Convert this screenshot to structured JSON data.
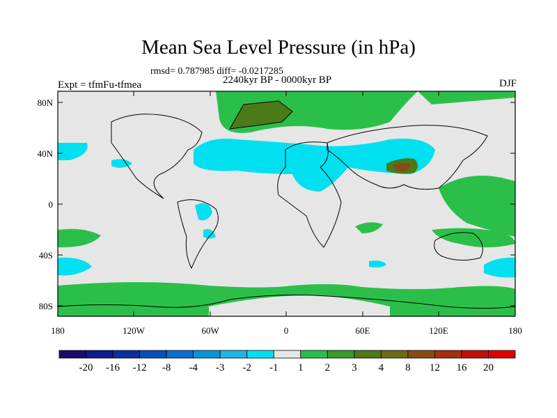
{
  "title": "Mean Sea Level Pressure (in hPa)",
  "stats": "rmsd= 0.787985 diff= -0.0217285",
  "period": "2240kyr BP - 0000kyr BP",
  "experiment": "Expt = tfmFu-tfmea",
  "season": "DJF",
  "lat_labels": [
    "80N",
    "40N",
    "0",
    "40S",
    "80S"
  ],
  "lon_labels": [
    "180",
    "120W",
    "60W",
    "0",
    "60E",
    "120E",
    "180"
  ],
  "colorbar": {
    "levels": [
      "-20",
      "-16",
      "-12",
      "-8",
      "-4",
      "-3",
      "-2",
      "-1",
      "1",
      "2",
      "3",
      "4",
      "8",
      "12",
      "16",
      "20"
    ],
    "colors": [
      "#1a0b6b",
      "#0d1b8c",
      "#0b2f9e",
      "#0a4fb8",
      "#0a6fcc",
      "#0a94d8",
      "#19b8e6",
      "#00e0f0",
      "#e6e6e6",
      "#2bbf4a",
      "#3a9a2a",
      "#4b7a1a",
      "#6e6a18",
      "#8a4a14",
      "#a3300f",
      "#c0100a",
      "#e00000"
    ]
  },
  "map_colors": {
    "land_background": "#e6e6e6",
    "positive_light": "#2bbf4a",
    "positive_mid": "#4b7a1a",
    "positive_strong": "#8a4a14",
    "negative_light": "#00e0f0"
  }
}
